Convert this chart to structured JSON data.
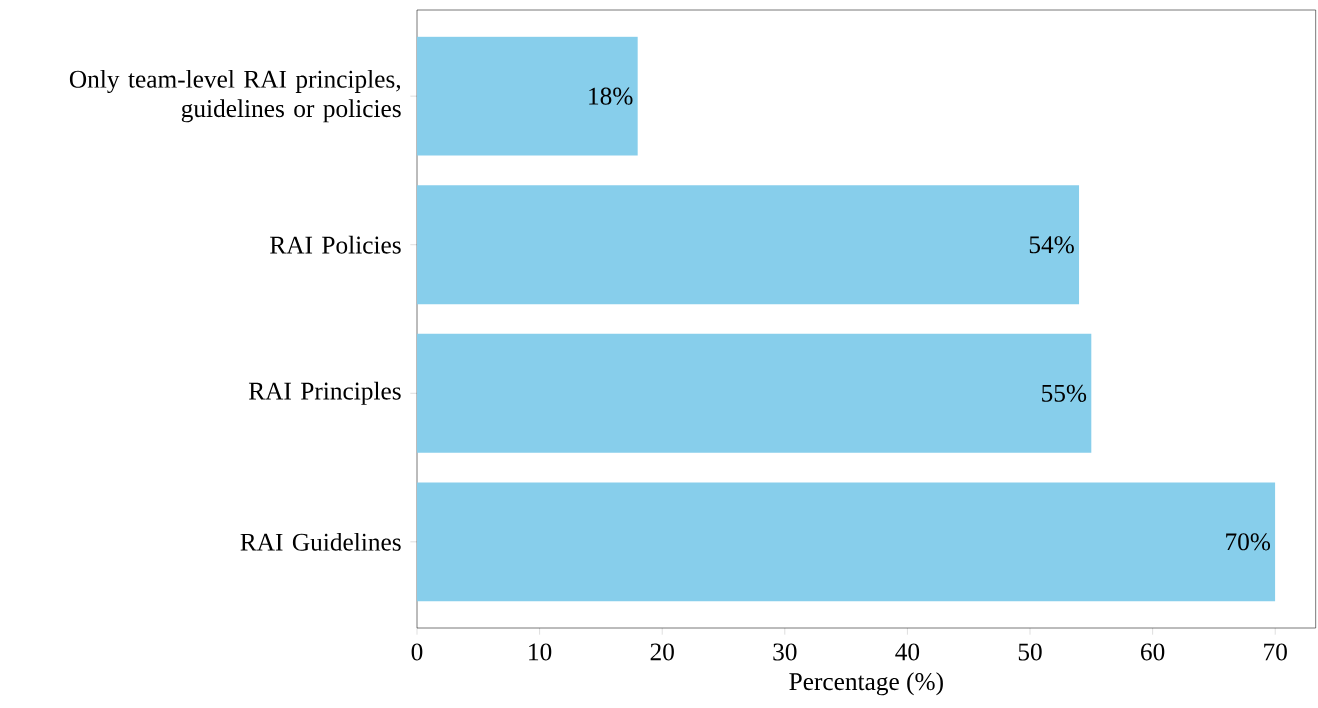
{
  "chart_data": {
    "type": "bar",
    "orientation": "horizontal",
    "xlabel": "Percentage (%)",
    "categories": [
      "Only team-level RAI principles, guidelines or policies",
      "RAI Policies",
      "RAI Principles",
      "RAI Guidelines"
    ],
    "values": [
      18,
      54,
      55,
      70
    ],
    "color": "#87ceeb",
    "value_labels": [
      "18%",
      "54%",
      "55%",
      "70%"
    ],
    "xlim": [
      0,
      73.3
    ],
    "xticks": [
      0,
      10,
      20,
      30,
      40,
      50,
      60,
      70
    ],
    "grid": false
  }
}
